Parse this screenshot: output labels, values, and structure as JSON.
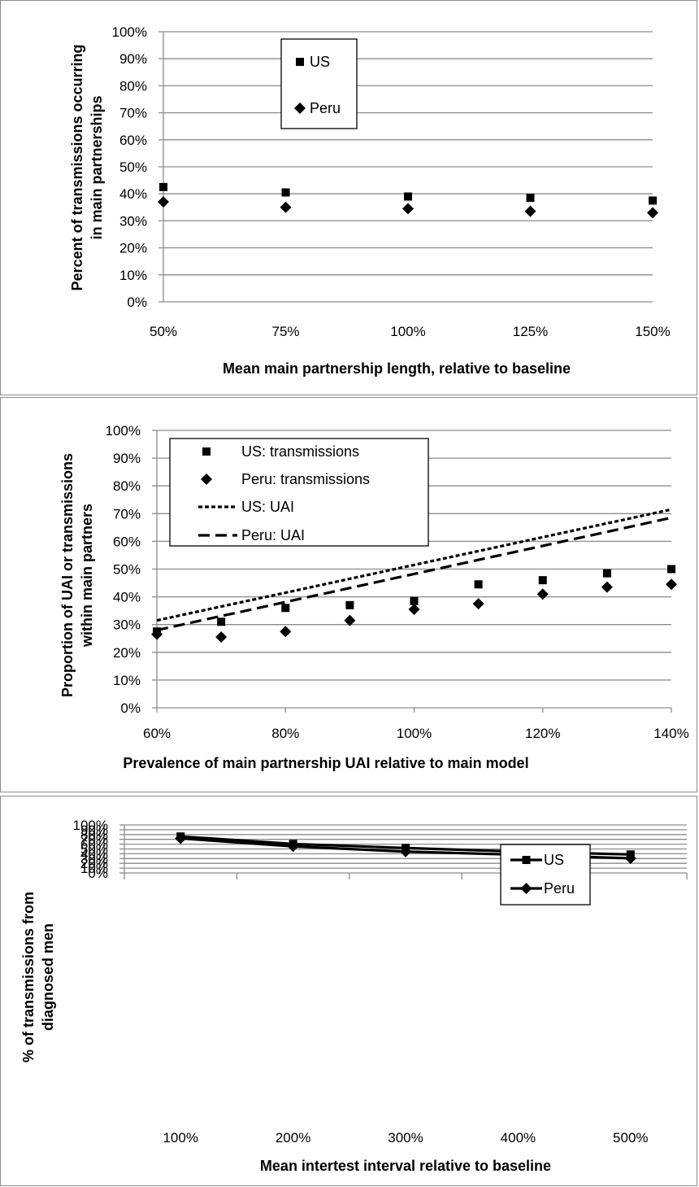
{
  "chart_data": [
    {
      "type": "scatter",
      "title": "",
      "xlabel": "Mean main partnership length, relative to baseline",
      "ylabel": "Percent of transmissions occurring in main partnerships",
      "ylabel_lines": [
        "Percent of transmissions occurring",
        "in main partnerships"
      ],
      "categories": [
        "50%",
        "75%",
        "100%",
        "125%",
        "150%"
      ],
      "y_ticks": [
        "0%",
        "10%",
        "20%",
        "30%",
        "40%",
        "50%",
        "60%",
        "70%",
        "80%",
        "90%",
        "100%"
      ],
      "ylim": [
        0,
        100
      ],
      "grid": true,
      "legend_position": "top-center",
      "series": [
        {
          "name": "US",
          "marker": "square",
          "values": [
            42.5,
            40.5,
            39,
            38.5,
            37.5
          ]
        },
        {
          "name": "Peru",
          "marker": "diamond",
          "values": [
            37,
            35,
            34.5,
            33.5,
            33
          ]
        }
      ]
    },
    {
      "type": "scatter",
      "title": "",
      "xlabel": "Prevalence of main partnership UAI relative to main model",
      "ylabel": "Proportion of UAI or transmissions within main partners",
      "ylabel_lines": [
        "Proportion of UAI or transmissions",
        "within main partners"
      ],
      "x_ticks": [
        "60%",
        "80%",
        "100%",
        "120%",
        "140%"
      ],
      "y_ticks": [
        "0%",
        "10%",
        "20%",
        "30%",
        "40%",
        "50%",
        "60%",
        "70%",
        "80%",
        "90%",
        "100%"
      ],
      "xlim": [
        60,
        140
      ],
      "ylim": [
        0,
        100
      ],
      "grid": true,
      "legend_position": "top-left",
      "series": [
        {
          "name": "US: transmissions",
          "marker": "square",
          "x": [
            60,
            70,
            80,
            90,
            100,
            110,
            120,
            130,
            140
          ],
          "y": [
            27.5,
            31,
            36,
            37,
            38.5,
            44.5,
            46,
            48.5,
            50
          ]
        },
        {
          "name": "Peru: transmissions",
          "marker": "diamond",
          "x": [
            60,
            70,
            80,
            90,
            100,
            110,
            120,
            130,
            140
          ],
          "y": [
            26.5,
            25.5,
            27.5,
            31.5,
            35.5,
            37.5,
            41,
            43.5,
            44.5
          ]
        },
        {
          "name": "US: UAI",
          "line": "dotted",
          "x": [
            60,
            140
          ],
          "y": [
            31.5,
            71.5
          ]
        },
        {
          "name": "Peru: UAI",
          "line": "dashed",
          "x": [
            60,
            140
          ],
          "y": [
            28,
            68.5
          ]
        }
      ]
    },
    {
      "type": "line",
      "title": "",
      "xlabel": "Mean intertest interval relative to baseline",
      "ylabel": "% of transmissions from diagnosed men",
      "ylabel_lines": [
        "% of transmissions from",
        "diagnosed men"
      ],
      "categories": [
        "100%",
        "200%",
        "300%",
        "400%",
        "500%"
      ],
      "y_ticks": [
        "0%",
        "10%",
        "20%",
        "30%",
        "40%",
        "50%",
        "60%",
        "70%",
        "80%",
        "90%",
        "100%"
      ],
      "ylim": [
        0,
        100
      ],
      "grid": true,
      "legend_position": "top-right",
      "series": [
        {
          "name": "US",
          "marker": "square",
          "values": [
            76,
            60.5,
            52,
            44.5,
            38.5
          ]
        },
        {
          "name": "Peru",
          "marker": "diamond",
          "values": [
            72,
            55.5,
            44.5,
            38,
            30.5
          ]
        }
      ]
    }
  ]
}
